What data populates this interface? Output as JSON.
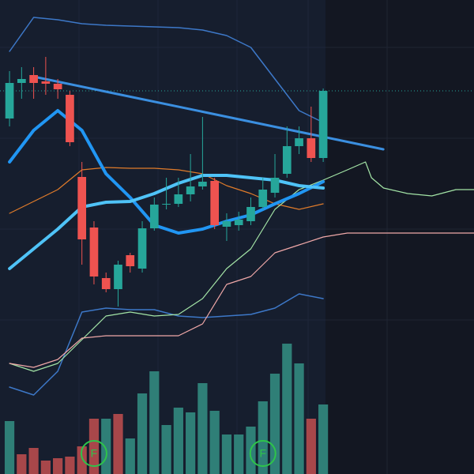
{
  "chart_data": {
    "type": "candlestick",
    "xlim": [
      -0.79,
      38.5
    ],
    "ylim": [
      0,
      600
    ],
    "up_color": "#26a69a",
    "down_color": "#ef5350",
    "candles": {
      "x": [
        0,
        1,
        2,
        3,
        4,
        5,
        6,
        7,
        8,
        9,
        10,
        11,
        12,
        13,
        14,
        15,
        16,
        17,
        18,
        19,
        20,
        21,
        22,
        23,
        24,
        25,
        26
      ],
      "open": [
        450,
        495,
        505,
        497,
        494,
        480,
        376,
        312,
        248,
        234,
        277,
        260,
        311,
        341,
        342,
        354,
        364,
        371,
        313,
        315,
        320,
        338,
        356,
        380,
        415,
        425,
        400
      ],
      "close": [
        495,
        500,
        495,
        494,
        487,
        420,
        297,
        250,
        234,
        265,
        263,
        311,
        341,
        342,
        354,
        364,
        370,
        315,
        320,
        322,
        338,
        360,
        375,
        415,
        425,
        400,
        485
      ],
      "high": [
        510,
        515,
        515,
        528,
        500,
        485,
        395,
        320,
        255,
        270,
        280,
        320,
        350,
        375,
        375,
        405,
        452,
        375,
        330,
        332,
        350,
        375,
        405,
        440,
        440,
        465,
        488
      ],
      "low": [
        440,
        475,
        475,
        480,
        475,
        415,
        265,
        240,
        230,
        212,
        255,
        255,
        308,
        335,
        338,
        345,
        360,
        310,
        295,
        308,
        315,
        335,
        350,
        375,
        405,
        395,
        395
      ]
    },
    "volume": {
      "ylim": [
        0,
        170
      ],
      "values": [
        67,
        25,
        33,
        17,
        20,
        22,
        35,
        70,
        70,
        76,
        45,
        102,
        130,
        62,
        84,
        78,
        115,
        80,
        50,
        50,
        60,
        92,
        127,
        165,
        140,
        70,
        88
      ],
      "colors": [
        "#2f7f77",
        "#a8474a",
        "#a8474a",
        "#a8474a",
        "#a8474a",
        "#a8474a",
        "#a8474a",
        "#a8474a",
        "#2f7f77",
        "#a8474a",
        "#2f7f77",
        "#2f7f77",
        "#2f7f77",
        "#2f7f77",
        "#2f7f77",
        "#2f7f77",
        "#2f7f77",
        "#2f7f77",
        "#2f7f77",
        "#2f7f77",
        "#2f7f77",
        "#2f7f77",
        "#2f7f77",
        "#2f7f77",
        "#2f7f77",
        "#a8474a",
        "#2f7f77"
      ]
    },
    "lines": [
      {
        "color": "#3d78c8",
        "width": 1.5,
        "x": [
          0,
          2,
          4,
          6,
          8,
          10,
          12,
          14,
          16,
          18,
          20,
          22,
          24,
          26
        ],
        "values": [
          535,
          578,
          575,
          570,
          568,
          567,
          566,
          565,
          562,
          555,
          540,
          500,
          460,
          445
        ]
      },
      {
        "color": "#3d78c8",
        "width": 1.5,
        "x": [
          0,
          2,
          4,
          6,
          8,
          10,
          12,
          14,
          16,
          18,
          20,
          22,
          24,
          26
        ],
        "values": [
          110,
          100,
          130,
          205,
          210,
          208,
          208,
          200,
          198,
          200,
          202,
          210,
          228,
          222
        ]
      },
      {
        "color": "#e07b2a",
        "width": 1.2,
        "x": [
          0,
          2,
          4,
          6,
          8,
          10,
          12,
          14,
          16,
          18,
          20,
          22,
          24,
          26
        ],
        "values": [
          330,
          345,
          360,
          385,
          388,
          387,
          387,
          385,
          380,
          365,
          355,
          342,
          335,
          342
        ]
      },
      {
        "color": "#a3e4a6",
        "width": 1.2,
        "x": [
          0,
          2,
          4,
          6,
          8,
          10,
          12,
          14,
          16,
          18,
          20,
          22,
          24,
          26,
          28,
          29.5,
          30,
          31,
          33,
          35,
          37,
          38.5
        ],
        "values": [
          140,
          130,
          140,
          170,
          200,
          205,
          200,
          202,
          222,
          260,
          285,
          335,
          360,
          372,
          385,
          395,
          375,
          362,
          355,
          352,
          360,
          360
        ]
      },
      {
        "color": "#f0a8a8",
        "width": 1.2,
        "x": [
          0,
          2,
          4,
          6,
          8,
          10,
          12,
          14,
          16,
          18,
          20,
          22,
          24,
          26,
          28,
          30,
          33,
          36,
          38.5
        ],
        "values": [
          140,
          135,
          145,
          172,
          175,
          175,
          175,
          175,
          190,
          240,
          250,
          280,
          290,
          300,
          305,
          305,
          305,
          305,
          305
        ]
      },
      {
        "color": "#2196f3",
        "width": 4,
        "x": [
          0,
          2,
          4,
          6,
          8,
          10,
          12,
          14,
          16,
          18,
          20,
          22,
          24,
          26
        ],
        "values": [
          395,
          435,
          460,
          435,
          380,
          350,
          315,
          305,
          310,
          320,
          328,
          342,
          355,
          370
        ]
      },
      {
        "color": "#4fc3f7",
        "width": 4,
        "x": [
          0,
          2,
          4,
          6,
          8,
          10,
          12,
          14,
          16,
          18,
          20,
          22,
          24,
          26
        ],
        "values": [
          260,
          285,
          310,
          338,
          344,
          345,
          355,
          368,
          378,
          378,
          375,
          372,
          365,
          362
        ]
      },
      {
        "color": "#3b8fe0",
        "width": 3,
        "x": [
          2,
          30.98
        ],
        "values": [
          503,
          411
        ]
      }
    ],
    "markers": [
      {
        "index": 7,
        "label": "F",
        "color": "#2ec44a"
      },
      {
        "index": 21,
        "label": "F",
        "color": "#2ec44a"
      }
    ]
  }
}
